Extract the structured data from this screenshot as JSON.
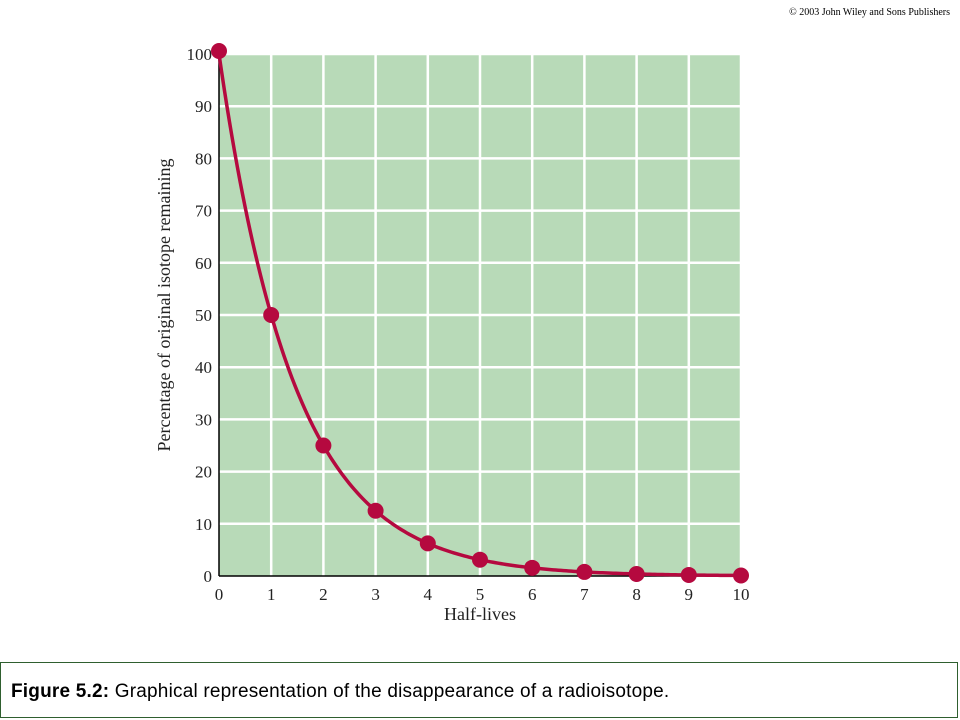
{
  "copyright": "© 2003 John Wiley and Sons Publishers",
  "caption": {
    "label": "Figure 5.2:",
    "text": " Graphical representation of the disappearance of a radioisotope."
  },
  "colors": {
    "plot_background": "#b8dab8",
    "grid": "#ffffff",
    "series": "#b5093f",
    "axis": "#000000",
    "caption_border": "#2f5f2f"
  },
  "chart_data": {
    "type": "line",
    "xlabel": "Half-lives",
    "ylabel": "Percentage of original isotope remaining",
    "xlim": [
      0,
      10
    ],
    "ylim": [
      0,
      100
    ],
    "xticks": [
      0,
      1,
      2,
      3,
      4,
      5,
      6,
      7,
      8,
      9,
      10
    ],
    "yticks": [
      0,
      10,
      20,
      30,
      40,
      50,
      60,
      70,
      80,
      90,
      100
    ],
    "grid": true,
    "marker": "circle",
    "series": [
      {
        "x": [
          0,
          1,
          2,
          3,
          4,
          5,
          6,
          7,
          8,
          9,
          10
        ],
        "y": [
          100,
          50,
          25,
          12.5,
          6.25,
          3.125,
          1.5625,
          0.78,
          0.39,
          0.2,
          0.1
        ]
      }
    ]
  }
}
